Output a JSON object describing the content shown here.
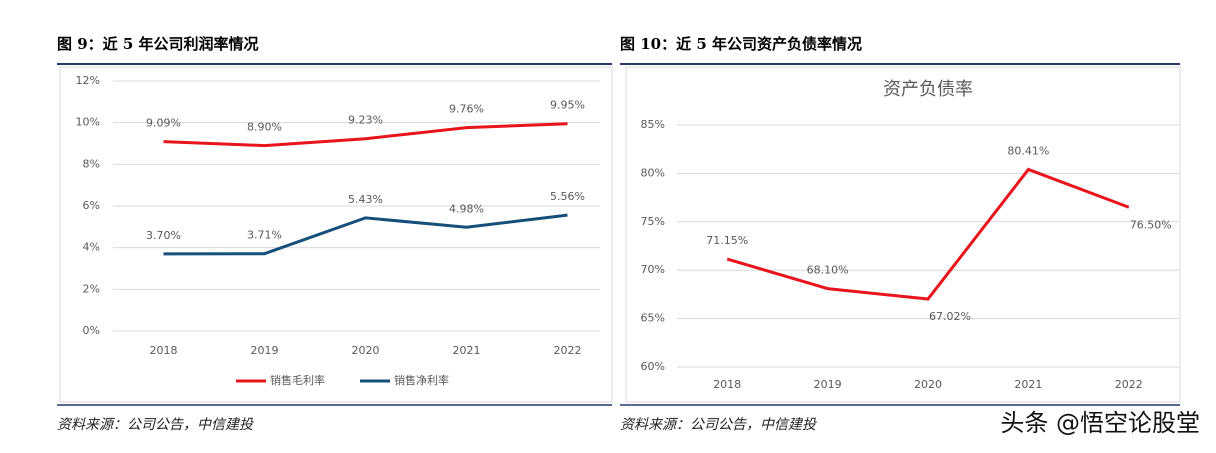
{
  "captions": [
    "图 9：近 5 年公司利润率情况",
    "图 10：近 5 年公司资产负债率情况"
  ],
  "sources": [
    "资料来源：公司公告，中信建投",
    "资料来源：公司公告，中信建投"
  ],
  "watermark": "头条 @悟空论股堂",
  "chart_data": [
    {
      "type": "line",
      "categories": [
        "2018",
        "2019",
        "2020",
        "2021",
        "2022"
      ],
      "series": [
        {
          "name": "销售毛利率",
          "color": "#e8141b",
          "values": [
            9.09,
            8.9,
            9.23,
            9.76,
            9.95
          ],
          "value_labels": [
            "9.09%",
            "8.90%",
            "9.23%",
            "9.76%",
            "9.95%"
          ]
        },
        {
          "name": "销售净利率",
          "color": "#15507a",
          "values": [
            3.7,
            3.71,
            5.43,
            4.98,
            5.56
          ],
          "value_labels": [
            "3.70%",
            "3.71%",
            "5.43%",
            "4.98%",
            "5.56%"
          ]
        }
      ],
      "ylim": [
        0,
        12
      ],
      "yticks": [
        {
          "value": 0,
          "label": "0%"
        },
        {
          "value": 2,
          "label": "2%"
        },
        {
          "value": 4,
          "label": "4%"
        },
        {
          "value": 6,
          "label": "6%"
        },
        {
          "value": 8,
          "label": "8%"
        },
        {
          "value": 10,
          "label": "10%"
        },
        {
          "value": 12,
          "label": "12%"
        }
      ],
      "grid": true,
      "legend": "bottom"
    },
    {
      "type": "line",
      "title": "资产负债率",
      "categories": [
        "2018",
        "2019",
        "2020",
        "2021",
        "2022"
      ],
      "series": [
        {
          "color": "#e8141b",
          "values": [
            71.15,
            68.1,
            67.02,
            80.41,
            76.5
          ],
          "value_labels": [
            "71.15%",
            "68.10%",
            "67.02%",
            "80.41%",
            "76.50%"
          ]
        }
      ],
      "ylim": [
        60,
        85
      ],
      "yticks": [
        {
          "value": 60,
          "label": "60%"
        },
        {
          "value": 65,
          "label": "65%"
        },
        {
          "value": 70,
          "label": "70%"
        },
        {
          "value": 75,
          "label": "75%"
        },
        {
          "value": 80,
          "label": "80%"
        },
        {
          "value": 85,
          "label": "85%"
        }
      ],
      "grid": true
    }
  ]
}
